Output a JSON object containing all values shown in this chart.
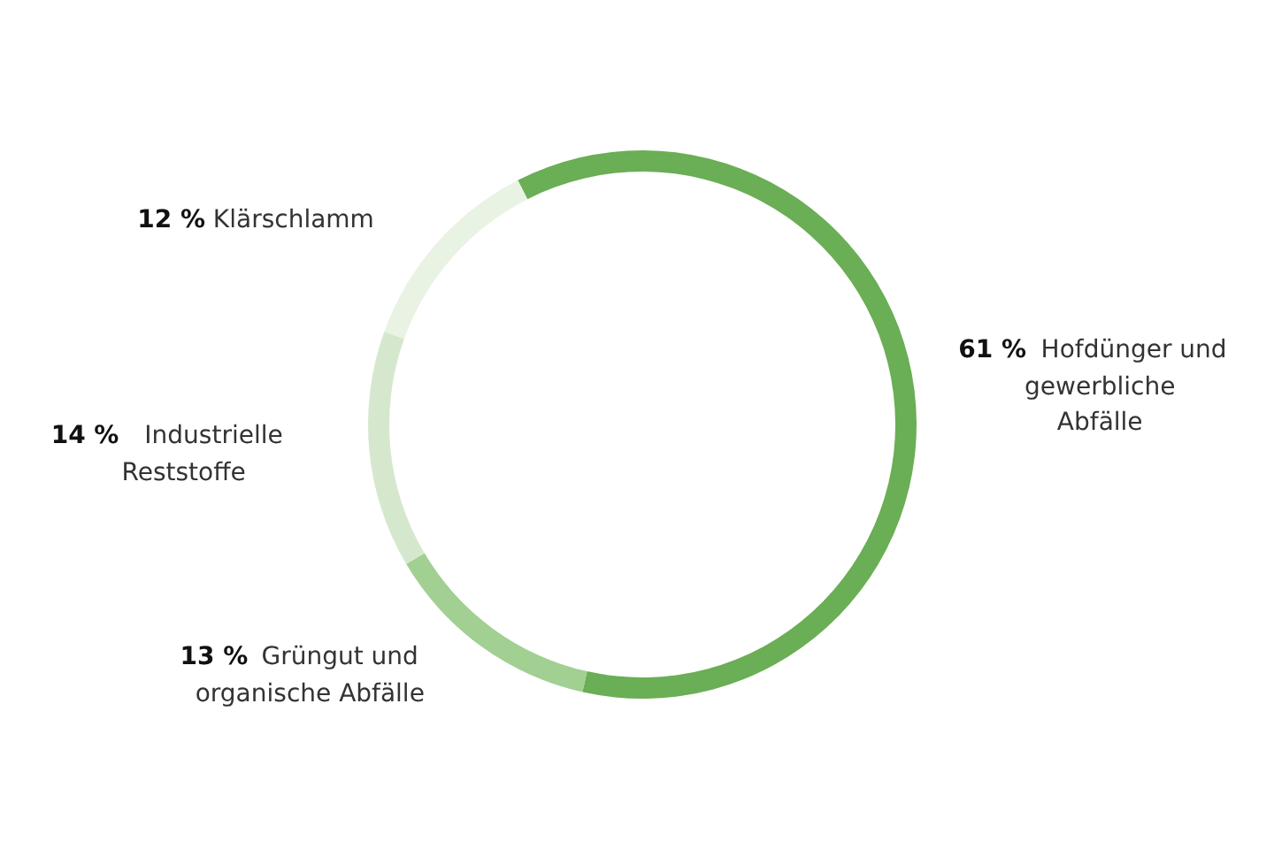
{
  "chart_data": {
    "type": "donut",
    "categories": [
      "Hofdünger und gewerbliche Abfälle",
      "Grüngut und organische Abfälle",
      "Industrielle Reststoffe",
      "Klärschlamm"
    ],
    "values": [
      61,
      13,
      14,
      12
    ],
    "value_labels": [
      "61 %",
      "13 %",
      "14 %",
      "12 %"
    ],
    "colors": [
      "#6aae55",
      "#a2cf92",
      "#d5e8cd",
      "#e9f3e4"
    ],
    "legend": false
  }
}
